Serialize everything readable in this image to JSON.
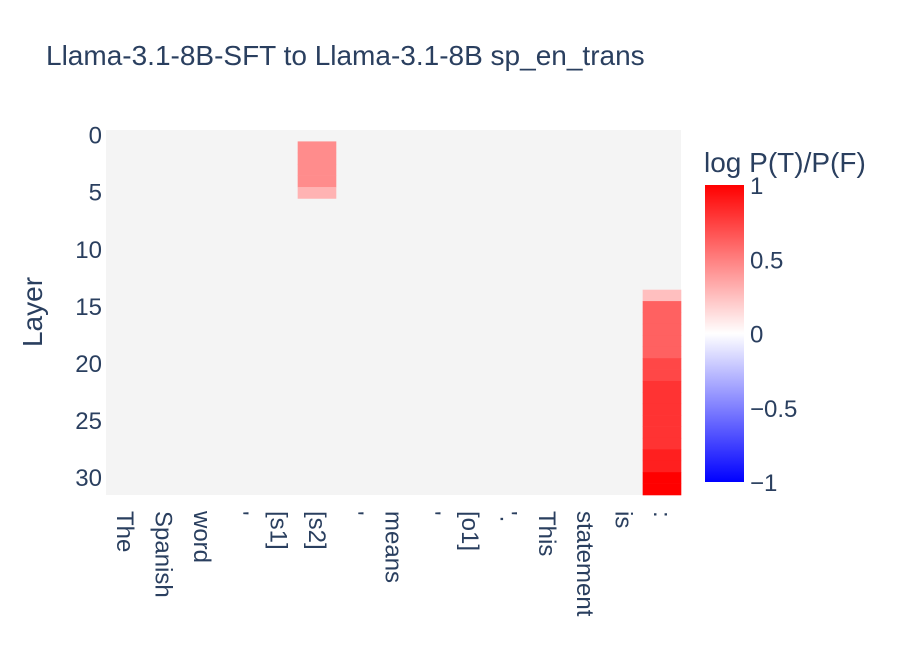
{
  "chart_data": {
    "type": "heatmap",
    "title": "Llama-3.1-8B-SFT to Llama-3.1-8B sp_en_trans",
    "xlabel": "",
    "ylabel": "Layer",
    "x_categories": [
      "The",
      "Spanish",
      "word",
      "'",
      "[s1]",
      "[s2]",
      "'",
      "means",
      "'",
      "[o1]",
      "'.",
      "This",
      "statement",
      "is",
      ":"
    ],
    "y_tick_labels": [
      "0",
      "5",
      "10",
      "15",
      "20",
      "25",
      "30"
    ],
    "y_tick_values": [
      0,
      5,
      10,
      15,
      20,
      25,
      30
    ],
    "ylim": [
      0,
      31
    ],
    "background_color": "#f4f4f4",
    "colorbar": {
      "title": "log P(T)/P(F)",
      "range": [
        -1,
        1
      ],
      "tick_labels": [
        "1",
        "0.5",
        "0",
        "−0.5",
        "−1"
      ],
      "tick_values": [
        1,
        0.5,
        0,
        -0.5,
        -1
      ],
      "colors": [
        "#0000ff",
        "#ffffff",
        "#ff0000"
      ]
    },
    "cells": [
      {
        "token_index": 5,
        "layer": 1,
        "value": 0.45
      },
      {
        "token_index": 5,
        "layer": 2,
        "value": 0.45
      },
      {
        "token_index": 5,
        "layer": 3,
        "value": 0.45
      },
      {
        "token_index": 5,
        "layer": 4,
        "value": 0.45
      },
      {
        "token_index": 5,
        "layer": 5,
        "value": 0.3
      },
      {
        "token_index": 14,
        "layer": 14,
        "value": 0.25
      },
      {
        "token_index": 14,
        "layer": 15,
        "value": 0.62
      },
      {
        "token_index": 14,
        "layer": 16,
        "value": 0.62
      },
      {
        "token_index": 14,
        "layer": 17,
        "value": 0.62
      },
      {
        "token_index": 14,
        "layer": 18,
        "value": 0.62
      },
      {
        "token_index": 14,
        "layer": 19,
        "value": 0.62
      },
      {
        "token_index": 14,
        "layer": 20,
        "value": 0.72
      },
      {
        "token_index": 14,
        "layer": 21,
        "value": 0.72
      },
      {
        "token_index": 14,
        "layer": 22,
        "value": 0.8
      },
      {
        "token_index": 14,
        "layer": 23,
        "value": 0.8
      },
      {
        "token_index": 14,
        "layer": 24,
        "value": 0.8
      },
      {
        "token_index": 14,
        "layer": 25,
        "value": 0.8
      },
      {
        "token_index": 14,
        "layer": 26,
        "value": 0.8
      },
      {
        "token_index": 14,
        "layer": 27,
        "value": 0.8
      },
      {
        "token_index": 14,
        "layer": 28,
        "value": 0.88
      },
      {
        "token_index": 14,
        "layer": 29,
        "value": 0.88
      },
      {
        "token_index": 14,
        "layer": 30,
        "value": 1.0
      },
      {
        "token_index": 14,
        "layer": 31,
        "value": 1.0
      }
    ]
  }
}
